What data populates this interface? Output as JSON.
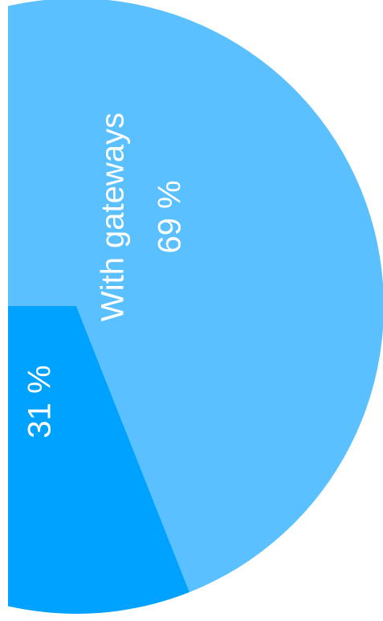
{
  "chart_data": {
    "type": "pie",
    "categories": [
      "With gateways",
      null
    ],
    "values": [
      69,
      31
    ],
    "value_labels": [
      "69 %",
      "31 %"
    ],
    "colors": [
      "#5ac0ff",
      "#00a2ff"
    ]
  }
}
